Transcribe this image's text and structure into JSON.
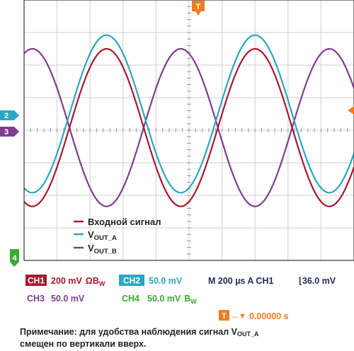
{
  "colors": {
    "ch1": "#a6192e",
    "ch2": "#2ba6c4",
    "ch3": "#7e3d8f",
    "ch4": "#3aaa35",
    "trigger": "#f07c1e",
    "readout_dark": "#1f2a5a",
    "grid": "#cfcfcf",
    "frame": "#333333"
  },
  "markers": {
    "trigger_top": "T",
    "ch2_ref": "2",
    "ch3_ref": "3",
    "ch4_ref": "4"
  },
  "legend": {
    "ch1": "Входной сигнал",
    "ch2_main": "V",
    "ch2_sub": "OUT_A",
    "ch3_main": "V",
    "ch3_sub": "OUT_B"
  },
  "readout": {
    "ch1_badge": "CH1",
    "ch1_value": "200 mV",
    "ch1_symbol": "Ω",
    "ch1_bw": "B",
    "ch1_bw_sub": "W",
    "ch2_badge": "CH2",
    "ch2_value": "50.0 mV",
    "timebase": "M 200 µs A  CH1",
    "trigger_slope": "⌊",
    "trigger_level": "36.0 mV",
    "ch3_label": "CH3",
    "ch3_value": "50.0 mV",
    "ch4_label": "CH4",
    "ch4_value": "50.0 mV",
    "ch4_bw": "B",
    "ch4_bw_sub": "W",
    "trigger_badge": "T",
    "trigger_position_arrow": "→▼",
    "trigger_position": "0.00000 s"
  },
  "footnote": {
    "line1_prefix": "Примечание: для удобства наблюдения сигнал V",
    "line1_sub": "OUT_A",
    "line2": "смещен по вертикали вверх."
  },
  "chart_data": {
    "type": "line",
    "x_divisions": 10,
    "y_divisions": 8,
    "time_per_division": "200 µs",
    "grid": true,
    "legend_placement": "bottom-left",
    "x_range_div": [
      0,
      10
    ],
    "y_range_div": [
      -4,
      4
    ],
    "series": [
      {
        "name": "Входной сигнал",
        "color": "#a6192e",
        "period_div": 4.5,
        "phase_deg": 0,
        "amplitude_div": 2.42,
        "offset_div": 0.08
      },
      {
        "name": "VOUT_A",
        "color": "#2ba6c4",
        "period_div": 4.5,
        "phase_deg": 0,
        "amplitude_div": 2.42,
        "offset_div": 0.5
      },
      {
        "name": "VOUT_B",
        "color": "#7e3d8f",
        "period_div": 4.5,
        "phase_deg": 180,
        "amplitude_div": 2.42,
        "offset_div": 0.08
      }
    ]
  }
}
